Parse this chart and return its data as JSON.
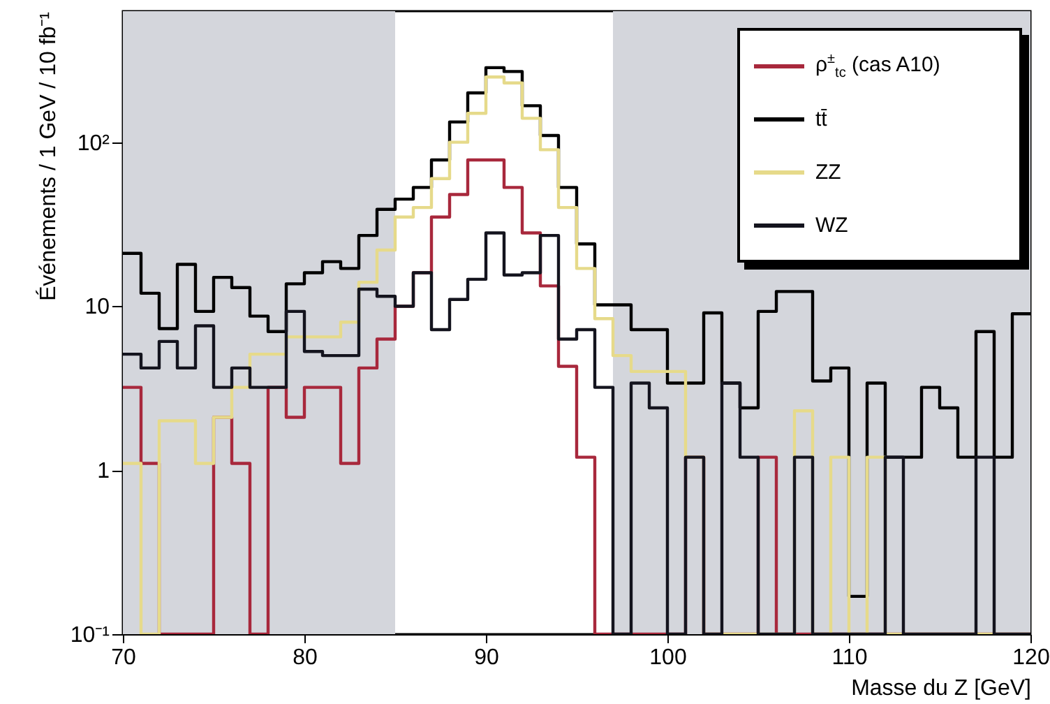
{
  "chart_data": {
    "type": "histogram",
    "bins": [
      70,
      71,
      72,
      73,
      74,
      75,
      76,
      77,
      78,
      79,
      80,
      81,
      82,
      83,
      84,
      85,
      86,
      87,
      88,
      89,
      90,
      91,
      92,
      93,
      94,
      95,
      96,
      97,
      98,
      99,
      100,
      101,
      102,
      103,
      104,
      105,
      106,
      107,
      108,
      109,
      110,
      111,
      112,
      113,
      114,
      115,
      116,
      117,
      118,
      119,
      120
    ],
    "xlabel": "Masse du Z [GeV]",
    "ylabel": "Événements / 1 GeV / 10 fb⁻¹",
    "series": [
      {
        "name": "ρ$^{±}$$_{tc}$ (cas A10)",
        "color": "#a8283c",
        "values": [
          3.2,
          1.1,
          0.1,
          0.1,
          0.1,
          2.1,
          1.1,
          0.1,
          3.2,
          2.1,
          3.2,
          3.2,
          1.1,
          4.2,
          6.3,
          10,
          16,
          35,
          48,
          78,
          78,
          53,
          28,
          13.3,
          4.3,
          1.2,
          0.1,
          0.1,
          0.1,
          0.1,
          0.1,
          1.2,
          0.1,
          0.1,
          0.1,
          1.2,
          0.1,
          0.1,
          0.1,
          0.1,
          0.1,
          0.1,
          0.1,
          0.1,
          0.1,
          0.1,
          0.1,
          0.1,
          0.1,
          0.1
        ]
      },
      {
        "name": "tt̄",
        "color": "#000000",
        "values": [
          21,
          12,
          7.3,
          18,
          9.3,
          15,
          13,
          8.7,
          7,
          13.7,
          16,
          18.7,
          17,
          27,
          39,
          45,
          53,
          78,
          133,
          200,
          285,
          270,
          167,
          110,
          53,
          24,
          10.2,
          10.2,
          7.2,
          7.2,
          3.4,
          3.4,
          9.1,
          3.4,
          2.4,
          9.3,
          12.3,
          12.3,
          3.5,
          4.2,
          0.17,
          3.4,
          1.2,
          1.2,
          3.2,
          2.4,
          1.2,
          7,
          1.2,
          9
        ]
      },
      {
        "name": "ZZ",
        "color": "#e6da8a",
        "values": [
          1.1,
          0.1,
          2,
          2,
          1.1,
          2.1,
          3.2,
          5.1,
          5.1,
          6.5,
          6.5,
          6.5,
          8,
          14,
          22,
          35,
          40,
          60,
          100,
          150,
          250,
          230,
          140,
          90,
          40,
          17,
          8.4,
          5,
          4,
          4,
          4,
          1.2,
          0.1,
          0.1,
          0.1,
          0.1,
          0.1,
          2.3,
          0.1,
          1.2,
          0.1,
          1.2,
          0.1,
          0.1,
          0.1,
          0.1,
          0.1,
          0.1,
          0.1,
          0.1
        ]
      },
      {
        "name": "WZ",
        "color": "#14141e",
        "values": [
          5.1,
          4.2,
          6.1,
          4.2,
          7.6,
          3.2,
          4.2,
          3.2,
          3.2,
          9.3,
          5.3,
          5,
          5,
          12.7,
          11.5,
          10,
          16,
          7.2,
          11,
          14.6,
          28,
          15.5,
          16,
          27,
          6.3,
          7.2,
          3.2,
          0.1,
          3.4,
          2.4,
          0.1,
          1.2,
          0.1,
          3.4,
          1.2,
          0.1,
          0.1,
          1.2,
          0.1,
          0.1,
          0.1,
          0.1,
          1.2,
          0.1,
          0.1,
          0.1,
          0.1,
          1.2,
          0.1,
          0.1
        ]
      }
    ],
    "bands": [
      {
        "axis": "x",
        "from": 70,
        "to": 85,
        "color": "#d4d6dc"
      },
      {
        "axis": "x",
        "from": 97,
        "to": 120,
        "color": "#d4d6dc"
      }
    ],
    "xlim": [
      70,
      120
    ],
    "xticks": [
      70,
      80,
      90,
      100,
      110,
      120
    ],
    "ylim": [
      0.1,
      630
    ],
    "yticks": [
      {
        "value": 0.1,
        "label": "10⁻¹"
      },
      1,
      10,
      {
        "value": 100,
        "label": "10²"
      }
    ],
    "log": true,
    "legend": "top right"
  }
}
